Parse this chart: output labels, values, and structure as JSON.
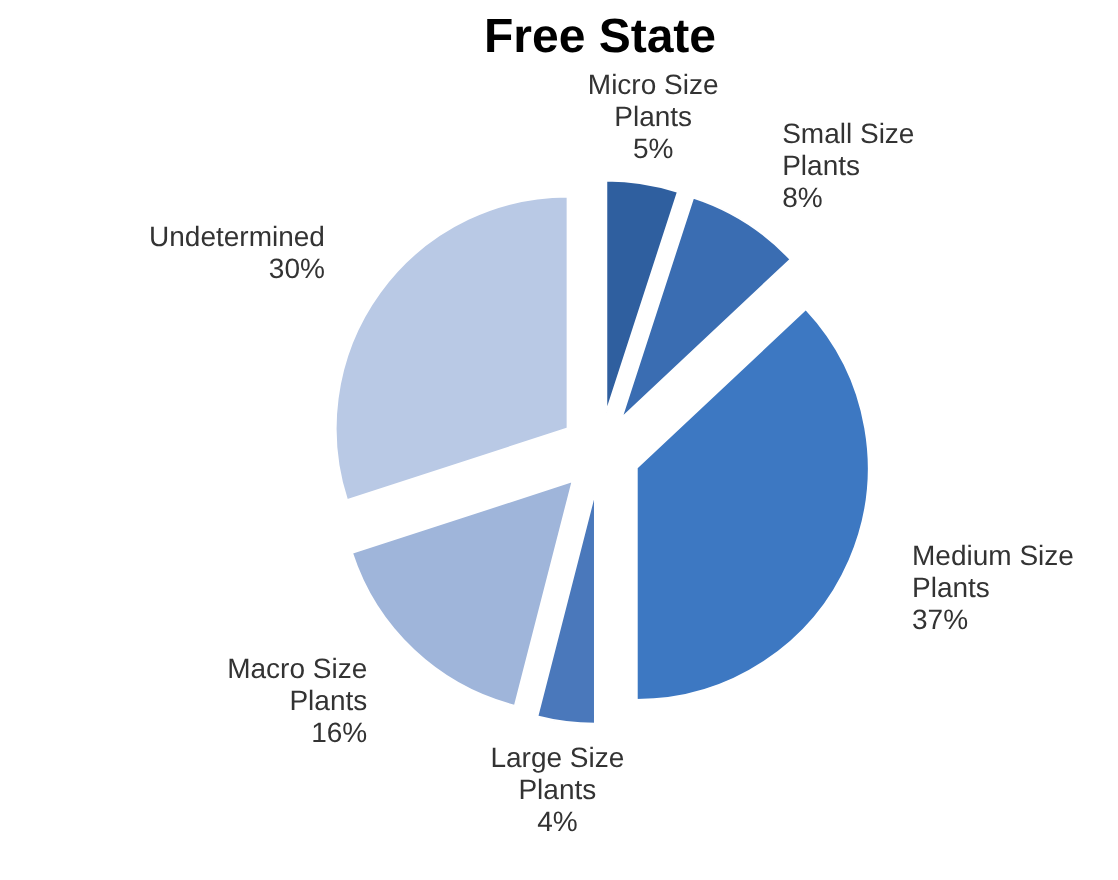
{
  "chart_data": {
    "type": "pie",
    "title": "Free State",
    "categories": [
      "Micro Size Plants",
      "Small Size Plants",
      "Medium Size Plants",
      "Large Size Plants",
      "Macro Size Plants",
      "Undetermined"
    ],
    "values": [
      5,
      8,
      37,
      4,
      16,
      30
    ],
    "value_labels": [
      "5%",
      "8%",
      "37%",
      "4%",
      "16%",
      "30%"
    ],
    "colors": [
      "#2f5f9f",
      "#3a6db2",
      "#3d78c2",
      "#4a78bb",
      "#9fb5da",
      "#b9c9e5"
    ]
  }
}
